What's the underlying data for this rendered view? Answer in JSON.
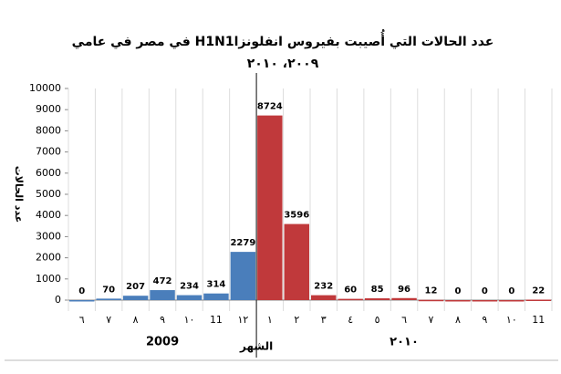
{
  "chart_data": {
    "type": "bar",
    "title": "عدد الحالات التي أُصيبت بفيروس انفلونزاH1N1  في مصر في عامي ٢٠٠٩، ٢٠١٠",
    "y_axis_label": "عدد الحالات",
    "x_axis_label": "الشهر",
    "x_group_labels": [
      "2009",
      "٢٠١٠"
    ],
    "categories": [
      "٦",
      "٧",
      "٨",
      "٩",
      "١٠",
      "11",
      "١٢",
      "١",
      "٢",
      "٣",
      "٤",
      "٥",
      "٦",
      "٧",
      "٨",
      "٩",
      "١٠",
      "11"
    ],
    "series": [
      {
        "color": "#4a7ebb",
        "values": [
          0,
          70,
          207,
          472,
          234,
          314,
          2279,
          null,
          null,
          null,
          null,
          null,
          null,
          null,
          null,
          null,
          null,
          null
        ]
      },
      {
        "color": "#c0393b",
        "values": [
          null,
          null,
          null,
          null,
          null,
          null,
          null,
          8724,
          3596,
          232,
          60,
          85,
          96,
          12,
          0,
          0,
          0,
          22
        ]
      }
    ],
    "ylim": [
      0,
      10000
    ],
    "yticks": [
      0,
      1000,
      2000,
      3000,
      4000,
      5000,
      6000,
      7000,
      8000,
      9000,
      10000
    ]
  }
}
